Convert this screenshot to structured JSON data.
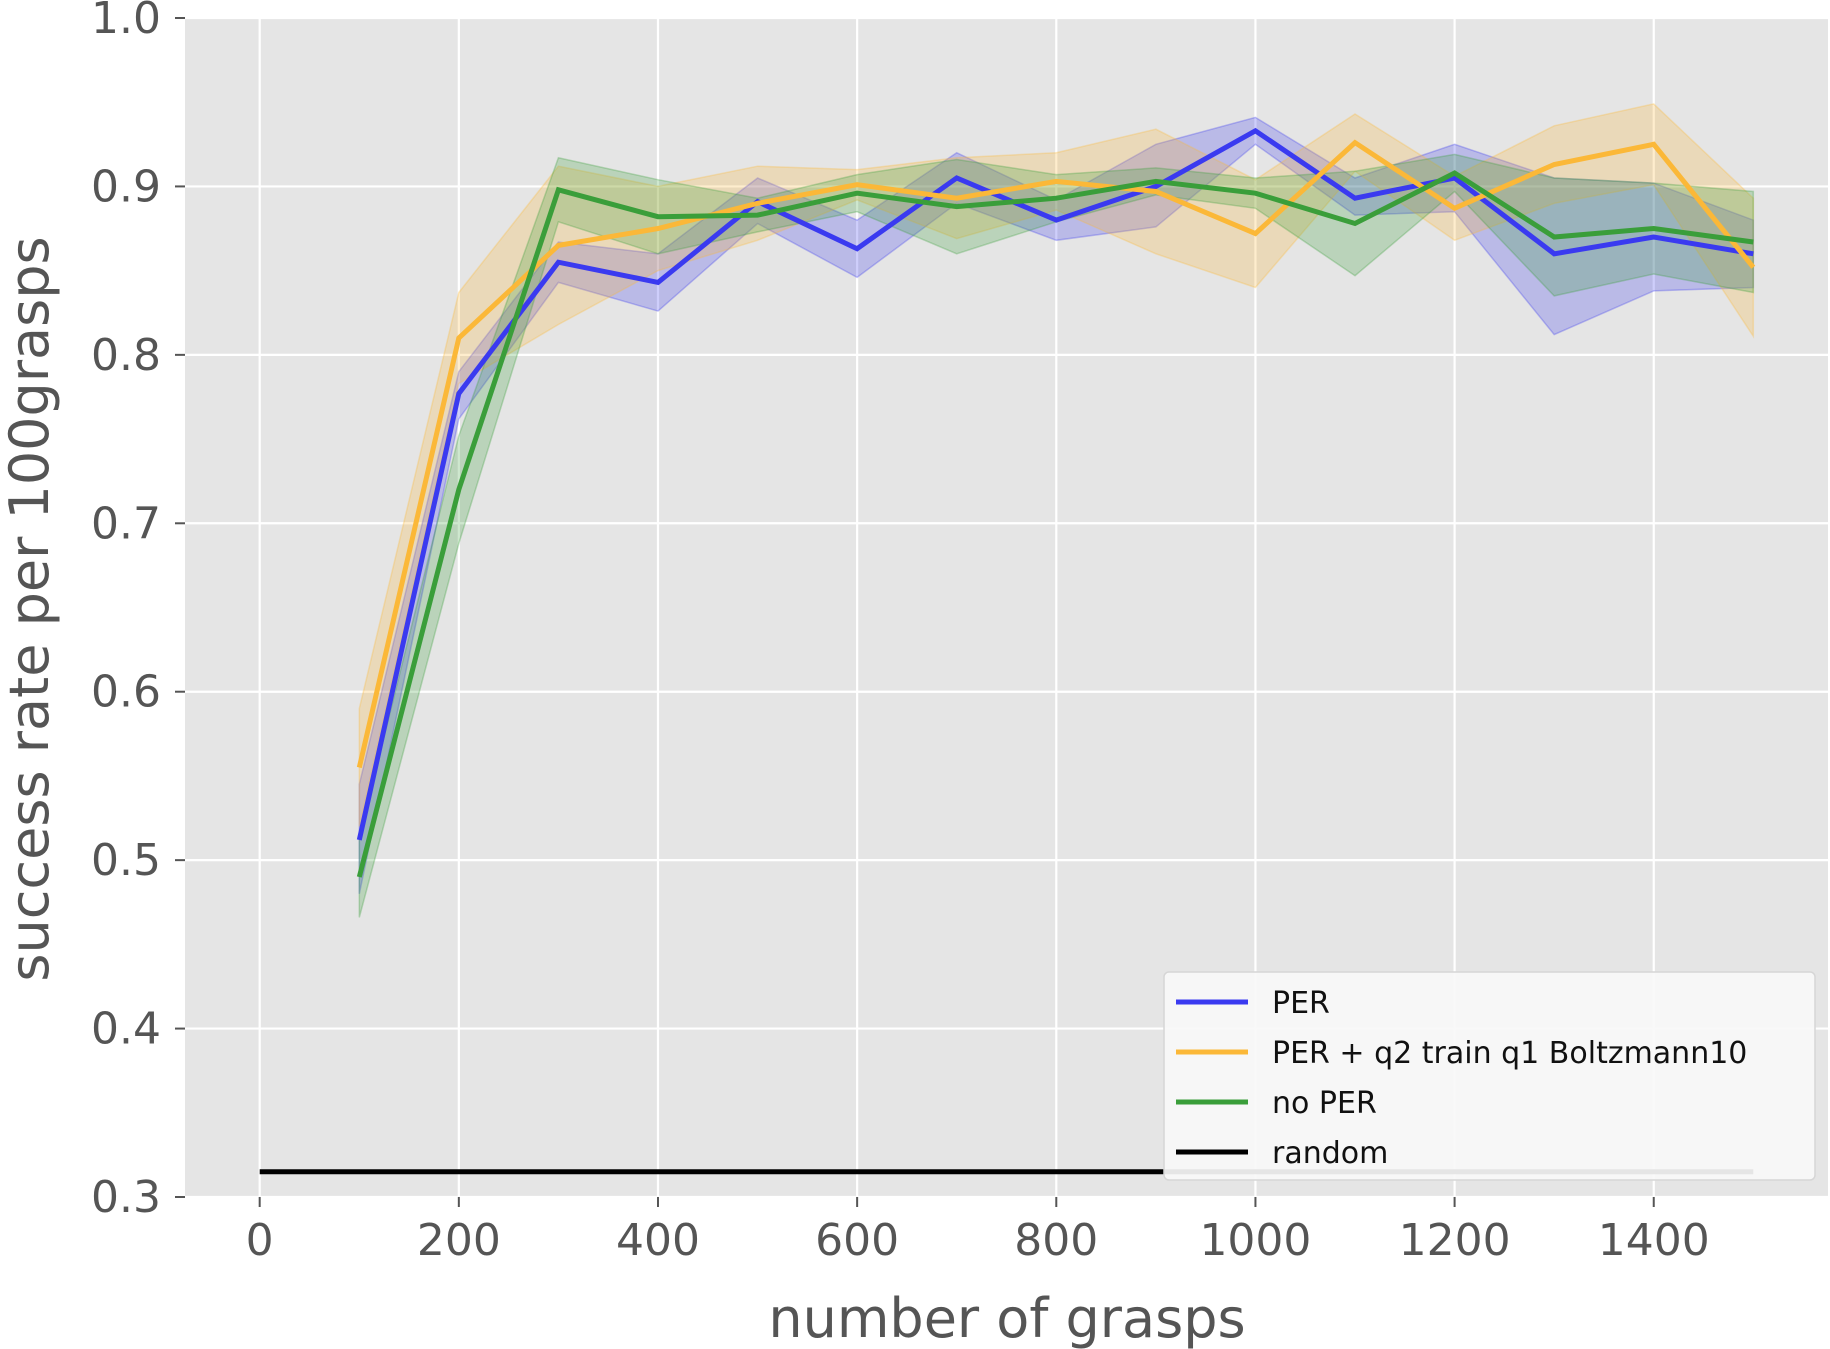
{
  "chart_data": {
    "type": "line",
    "title": "",
    "xlabel": "number of grasps",
    "ylabel": "success rate per 100grasps",
    "xlim": [
      -75,
      1575
    ],
    "ylim": [
      0.3,
      1.0
    ],
    "xticks": [
      0,
      200,
      400,
      600,
      800,
      1000,
      1200,
      1400
    ],
    "xtick_labels": [
      "0",
      "200",
      "400",
      "600",
      "800",
      "1000",
      "1200",
      "1400"
    ],
    "yticks": [
      0.3,
      0.4,
      0.5,
      0.6,
      0.7,
      0.8,
      0.9,
      1.0
    ],
    "ytick_labels": [
      "0.3",
      "0.4",
      "0.5",
      "0.6",
      "0.7",
      "0.8",
      "0.9",
      "1.0"
    ],
    "grid": true,
    "background": "#e5e5e5",
    "legend_position": "lower right",
    "x": [
      100,
      200,
      300,
      400,
      500,
      600,
      700,
      800,
      900,
      1000,
      1100,
      1200,
      1300,
      1400,
      1500
    ],
    "series": [
      {
        "name": "PER",
        "color": "#3a3af0",
        "values": [
          0.512,
          0.777,
          0.855,
          0.843,
          0.891,
          0.863,
          0.905,
          0.88,
          0.9,
          0.933,
          0.893,
          0.905,
          0.86,
          0.87,
          0.86
        ],
        "upper": [
          0.545,
          0.79,
          0.867,
          0.86,
          0.905,
          0.88,
          0.92,
          0.892,
          0.925,
          0.941,
          0.905,
          0.925,
          0.905,
          0.902,
          0.88
        ],
        "lower": [
          0.48,
          0.762,
          0.843,
          0.826,
          0.878,
          0.846,
          0.89,
          0.868,
          0.876,
          0.925,
          0.883,
          0.885,
          0.812,
          0.838,
          0.84
        ]
      },
      {
        "name": "PER + q2 train q1 Boltzmann10",
        "color": "#fbb838",
        "values": [
          0.555,
          0.81,
          0.865,
          0.875,
          0.89,
          0.901,
          0.893,
          0.903,
          0.897,
          0.872,
          0.926,
          0.887,
          0.913,
          0.925,
          0.852
        ],
        "upper": [
          0.59,
          0.837,
          0.912,
          0.9,
          0.912,
          0.91,
          0.917,
          0.92,
          0.934,
          0.904,
          0.943,
          0.906,
          0.936,
          0.949,
          0.893
        ],
        "lower": [
          0.52,
          0.783,
          0.818,
          0.85,
          0.868,
          0.892,
          0.869,
          0.886,
          0.86,
          0.84,
          0.909,
          0.868,
          0.89,
          0.901,
          0.811
        ]
      },
      {
        "name": "no PER",
        "color": "#3a9e3a",
        "values": [
          0.49,
          0.72,
          0.898,
          0.882,
          0.883,
          0.896,
          0.888,
          0.893,
          0.903,
          0.896,
          0.878,
          0.908,
          0.87,
          0.875,
          0.867
        ],
        "upper": [
          0.514,
          0.752,
          0.917,
          0.904,
          0.893,
          0.907,
          0.916,
          0.907,
          0.911,
          0.905,
          0.909,
          0.919,
          0.905,
          0.902,
          0.897
        ],
        "lower": [
          0.466,
          0.688,
          0.879,
          0.86,
          0.873,
          0.885,
          0.86,
          0.879,
          0.895,
          0.887,
          0.847,
          0.897,
          0.835,
          0.848,
          0.837
        ]
      },
      {
        "name": "random",
        "color": "#000000",
        "x": [
          0,
          1500
        ],
        "values": [
          0.315,
          0.315
        ]
      }
    ]
  }
}
